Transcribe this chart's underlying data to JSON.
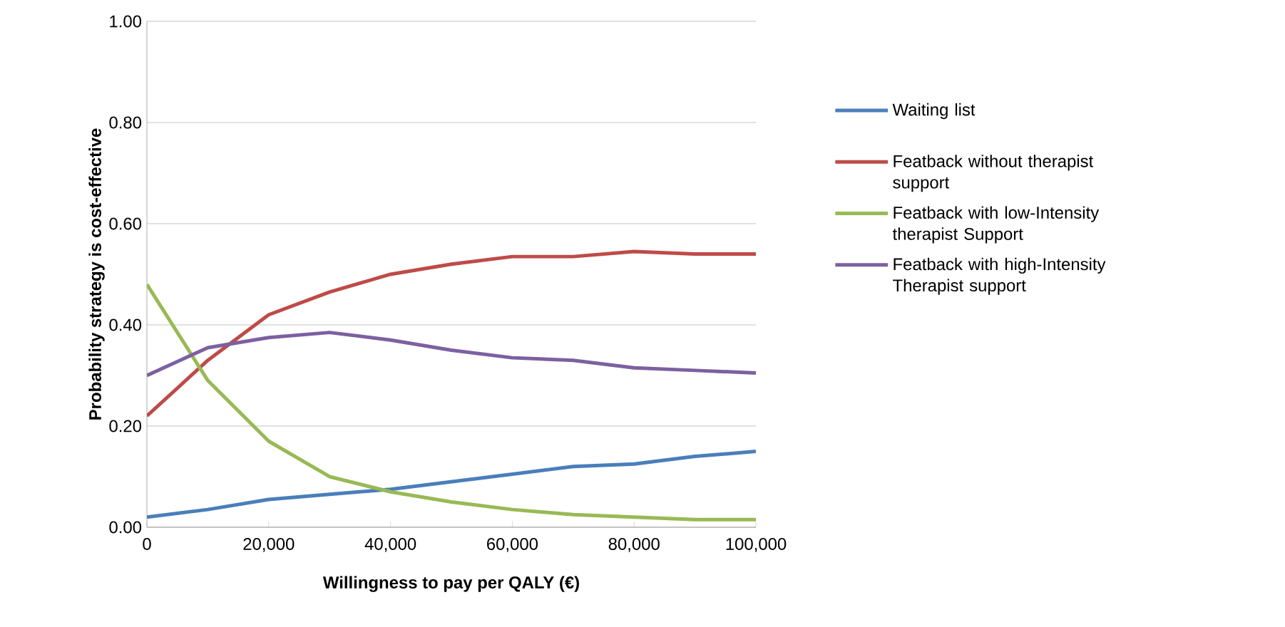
{
  "chart_data": {
    "type": "line",
    "xlabel": "Willingness to pay per QALY (€)",
    "ylabel": "Probability strategy is cost-effective",
    "x": [
      0,
      10000,
      20000,
      30000,
      40000,
      50000,
      60000,
      70000,
      80000,
      90000,
      100000
    ],
    "series": [
      {
        "name": "Waiting list",
        "color": "#4a7ebb",
        "values": [
          0.02,
          0.035,
          0.055,
          0.065,
          0.075,
          0.09,
          0.105,
          0.12,
          0.125,
          0.14,
          0.15
        ]
      },
      {
        "name": "Featback without therapist support",
        "color": "#be4b48",
        "values": [
          0.22,
          0.33,
          0.42,
          0.465,
          0.5,
          0.52,
          0.535,
          0.535,
          0.545,
          0.54,
          0.54
        ]
      },
      {
        "name": "Featback with low-Intensity therapist Support",
        "color": "#98b954",
        "values": [
          0.48,
          0.29,
          0.17,
          0.1,
          0.07,
          0.05,
          0.035,
          0.025,
          0.02,
          0.015,
          0.015
        ]
      },
      {
        "name": "Featback with high-Intensity Therapist support",
        "color": "#7d60a0",
        "values": [
          0.3,
          0.355,
          0.375,
          0.385,
          0.37,
          0.35,
          0.335,
          0.33,
          0.315,
          0.31,
          0.305
        ]
      }
    ],
    "xlim": [
      0,
      100000
    ],
    "xticks": [
      {
        "value": 0,
        "label": "0"
      },
      {
        "value": 20000,
        "label": "20,000"
      },
      {
        "value": 40000,
        "label": "40,000"
      },
      {
        "value": 60000,
        "label": "60,000"
      },
      {
        "value": 80000,
        "label": "80,000"
      },
      {
        "value": 100000,
        "label": "100,000"
      }
    ],
    "ylim": [
      0,
      1
    ],
    "yticks": [
      {
        "value": 0,
        "label": "0.00"
      },
      {
        "value": 0.2,
        "label": "0.20"
      },
      {
        "value": 0.4,
        "label": "0.40"
      },
      {
        "value": 0.6,
        "label": "0.60"
      },
      {
        "value": 0.8,
        "label": "0.80"
      },
      {
        "value": 1,
        "label": "1.00"
      }
    ],
    "grid": "y",
    "legend": "right",
    "marker": "none",
    "line_style": "solid"
  }
}
